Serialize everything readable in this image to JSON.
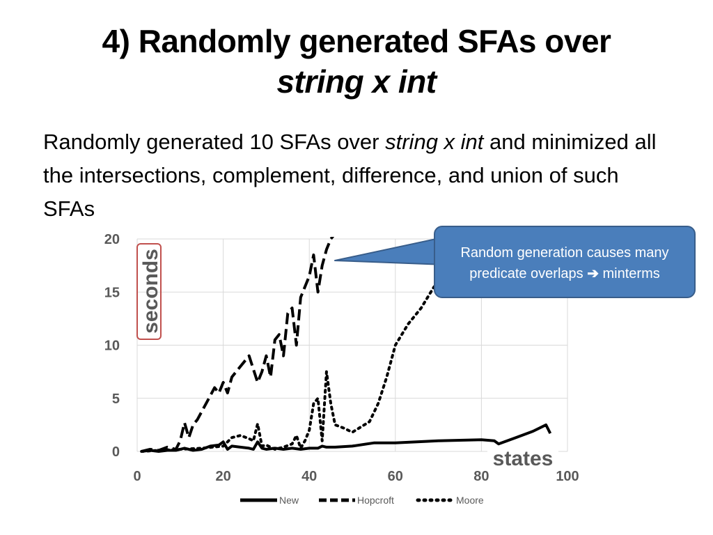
{
  "slide": {
    "title_line1": "4) Randomly generated SFAs over",
    "title_line2": "string x int",
    "body": {
      "part1": "Randomly generated 10 SFAs over ",
      "italic": "string x int",
      "part2": " and minimized all the intersections, complement, difference, and union of such SFAs"
    },
    "callout": {
      "line1": "Random generation causes many",
      "line2_prefix": "predicate overlaps ",
      "arrow": "➔",
      "line2_suffix": " minterms"
    }
  },
  "chart_data": {
    "type": "line",
    "title": "",
    "xlabel": "states",
    "ylabel": "seconds",
    "xlim": [
      0,
      100
    ],
    "ylim": [
      0,
      20
    ],
    "xticks": [
      0,
      20,
      40,
      60,
      80,
      100
    ],
    "yticks": [
      0,
      5,
      10,
      15,
      20
    ],
    "grid": true,
    "legend_position": "bottom",
    "series": [
      {
        "name": "New",
        "style": "solid",
        "x": [
          1,
          3,
          5,
          7,
          9,
          11,
          13,
          15,
          17,
          19,
          20,
          21,
          22,
          24,
          26,
          27,
          28,
          29,
          30,
          32,
          34,
          36,
          38,
          40,
          42,
          43,
          44,
          46,
          50,
          55,
          60,
          70,
          80,
          83,
          84,
          88,
          92,
          95,
          96
        ],
        "y": [
          0,
          0.1,
          0,
          0.1,
          0.1,
          0.3,
          0.1,
          0.2,
          0.5,
          0.6,
          0.9,
          0.2,
          0.5,
          0.4,
          0.3,
          0.2,
          0.9,
          0.3,
          0.2,
          0.3,
          0.2,
          0.3,
          0.2,
          0.3,
          0.3,
          0.5,
          0.4,
          0.4,
          0.5,
          0.8,
          0.8,
          1.0,
          1.1,
          1.0,
          0.7,
          1.3,
          1.9,
          2.5,
          1.7
        ]
      },
      {
        "name": "Hopcroft",
        "style": "dashed",
        "x": [
          1,
          3,
          5,
          7,
          9,
          10,
          11,
          12,
          13,
          14,
          16,
          18,
          19,
          20,
          21,
          22,
          24,
          26,
          28,
          29,
          30,
          31,
          32,
          33,
          34,
          35,
          36,
          37,
          38,
          39,
          40,
          41,
          42,
          43,
          44,
          45,
          46
        ],
        "y": [
          0,
          0.2,
          0.1,
          0.4,
          0.2,
          1.0,
          2.7,
          1.3,
          2.5,
          3.0,
          4.5,
          6.0,
          5.5,
          6.5,
          5.5,
          7.0,
          8.0,
          9.0,
          6.5,
          7.5,
          9.0,
          7.0,
          10.5,
          11.0,
          9.0,
          13.0,
          13.5,
          10.0,
          14.5,
          15.5,
          16.5,
          18.5,
          15.0,
          17.5,
          19.0,
          20.0,
          20.5
        ]
      },
      {
        "name": "Moore",
        "style": "dotted",
        "x": [
          1,
          5,
          10,
          15,
          20,
          22,
          24,
          26,
          27,
          28,
          29,
          30,
          32,
          34,
          36,
          37,
          38,
          39,
          40,
          41,
          42,
          43,
          44,
          45,
          46,
          48,
          50,
          54,
          56,
          58,
          60,
          63,
          66,
          69
        ],
        "y": [
          0,
          0.1,
          0.2,
          0.3,
          0.5,
          1.3,
          1.5,
          1.2,
          1.0,
          2.6,
          0.5,
          0.6,
          0.2,
          0.4,
          0.7,
          1.5,
          0.3,
          1.0,
          2.0,
          4.5,
          5.0,
          1.0,
          7.5,
          4.5,
          2.5,
          2.2,
          1.8,
          2.8,
          4.5,
          7.0,
          10.0,
          12.0,
          13.5,
          15.5
        ]
      }
    ]
  }
}
